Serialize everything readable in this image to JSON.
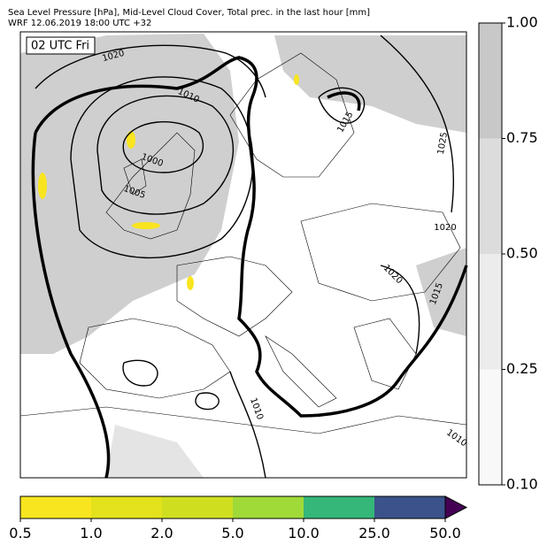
{
  "header": {
    "title_line1": "Sea Level Pressure [hPa], Mid-Level Cloud Cover, Total prec. in the last hour [mm]",
    "title_line2": "WRF 12.06.2019 18:00 UTC +32"
  },
  "map": {
    "time_label": "02 UTC Fri",
    "isobar_labels": [
      "1020",
      "1010",
      "1000",
      "1005",
      "1015",
      "1025",
      "1020",
      "1020",
      "1015",
      "1010",
      "1010"
    ]
  },
  "cloud_colorbar": {
    "ticks": [
      "1.00",
      "0.75",
      "0.50",
      "0.25",
      "0.10"
    ],
    "colors": [
      "#c8c8c8",
      "#dcdcdc",
      "#ececec",
      "#f8f8f8"
    ]
  },
  "precip_colorbar": {
    "ticks": [
      "0.5",
      "1.0",
      "2.0",
      "5.0",
      "10.0",
      "25.0",
      "50.0"
    ],
    "colors": [
      "#f9e51f",
      "#e3e21c",
      "#cfdf20",
      "#a0da39",
      "#35b779",
      "#3b528b",
      "#440154"
    ]
  }
}
